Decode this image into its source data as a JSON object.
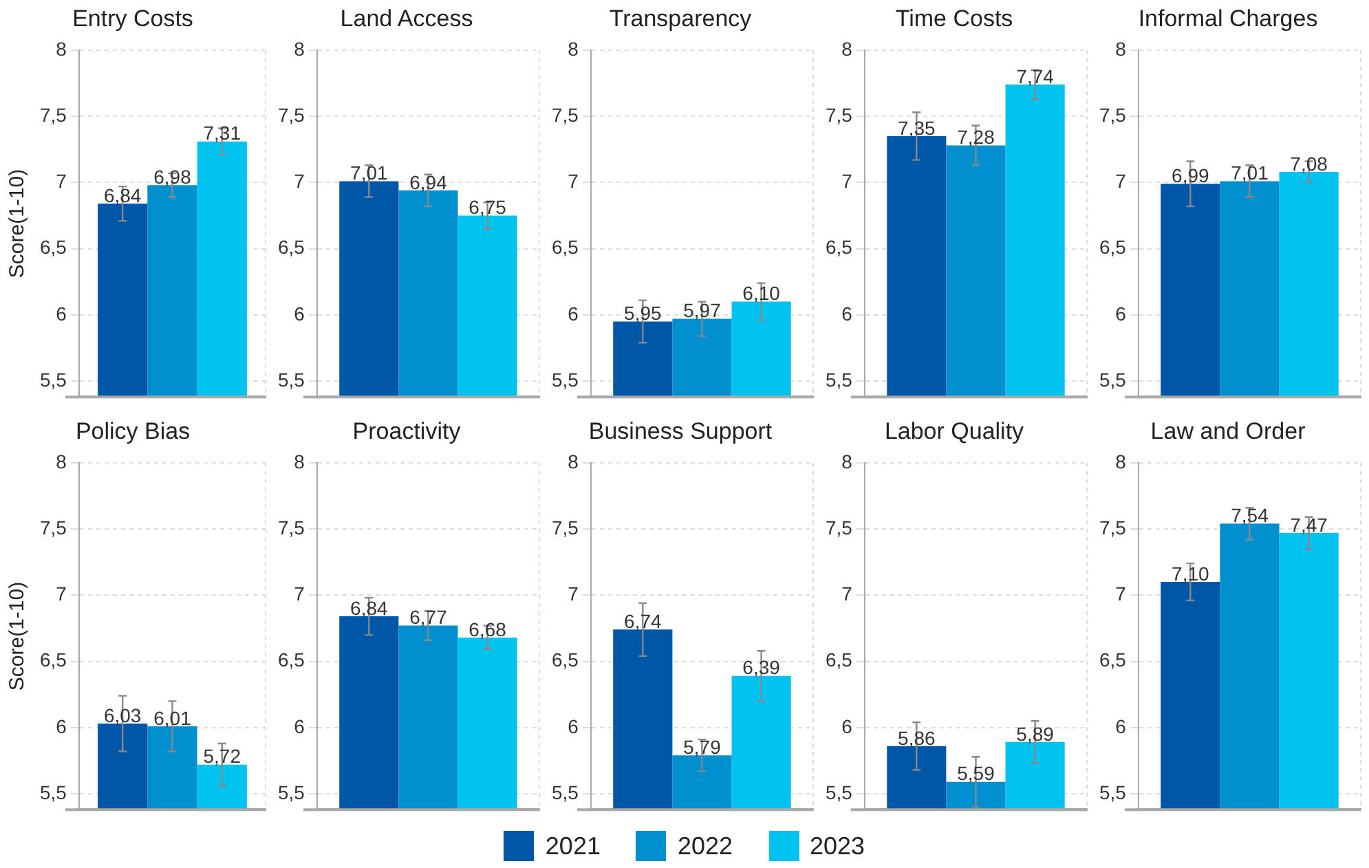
{
  "chart_data": [
    {
      "type": "bar",
      "title": "Entry Costs",
      "ylabel": "Score(1-10)",
      "categories": [
        null
      ],
      "ylim": [
        5.38,
        8
      ],
      "yticks": [
        {
          "value": 5.5,
          "label": "5,5"
        },
        6,
        {
          "value": 6.5,
          "label": "6,5"
        },
        7,
        {
          "value": 7.5,
          "label": "7,5"
        },
        8
      ],
      "grid": true,
      "series": [
        {
          "color": "#0057a8",
          "values": [
            6.84
          ],
          "value_labels": [
            "6,84"
          ],
          "errors": [
            0.13
          ]
        },
        {
          "color": "#0090d0",
          "values": [
            6.98
          ],
          "value_labels": [
            "6,98"
          ],
          "errors": [
            0.09
          ]
        },
        {
          "color": "#00c3f0",
          "values": [
            7.31
          ],
          "value_labels": [
            "7,31"
          ],
          "errors": [
            0.1
          ]
        }
      ]
    },
    {
      "type": "bar",
      "title": "Land Access",
      "categories": [
        null
      ],
      "ylim": [
        5.38,
        8
      ],
      "yticks": [
        {
          "value": 5.5,
          "label": "5,5"
        },
        6,
        {
          "value": 6.5,
          "label": "6,5"
        },
        7,
        {
          "value": 7.5,
          "label": "7,5"
        },
        8
      ],
      "grid": true,
      "series": [
        {
          "color": "#0057a8",
          "values": [
            7.01
          ],
          "value_labels": [
            "7,01"
          ],
          "errors": [
            0.12
          ]
        },
        {
          "color": "#0090d0",
          "values": [
            6.94
          ],
          "value_labels": [
            "6,94"
          ],
          "errors": [
            0.12
          ]
        },
        {
          "color": "#00c3f0",
          "values": [
            6.75
          ],
          "value_labels": [
            "6,75"
          ],
          "errors": [
            0.1
          ]
        }
      ]
    },
    {
      "type": "bar",
      "title": "Transparency",
      "categories": [
        null
      ],
      "ylim": [
        5.38,
        8
      ],
      "yticks": [
        {
          "value": 5.5,
          "label": "5,5"
        },
        6,
        {
          "value": 6.5,
          "label": "6,5"
        },
        7,
        {
          "value": 7.5,
          "label": "7,5"
        },
        8
      ],
      "grid": true,
      "series": [
        {
          "color": "#0057a8",
          "values": [
            5.95
          ],
          "value_labels": [
            "5,95"
          ],
          "errors": [
            0.16
          ]
        },
        {
          "color": "#0090d0",
          "values": [
            5.97
          ],
          "value_labels": [
            "5,97"
          ],
          "errors": [
            0.13
          ]
        },
        {
          "color": "#00c3f0",
          "values": [
            6.1
          ],
          "value_labels": [
            "6,10"
          ],
          "errors": [
            0.14
          ]
        }
      ]
    },
    {
      "type": "bar",
      "title": "Time Costs",
      "categories": [
        null
      ],
      "ylim": [
        5.38,
        8
      ],
      "yticks": [
        {
          "value": 5.5,
          "label": "5,5"
        },
        6,
        {
          "value": 6.5,
          "label": "6,5"
        },
        7,
        {
          "value": 7.5,
          "label": "7,5"
        },
        8
      ],
      "grid": true,
      "series": [
        {
          "color": "#0057a8",
          "values": [
            7.35
          ],
          "value_labels": [
            "7,35"
          ],
          "errors": [
            0.18
          ]
        },
        {
          "color": "#0090d0",
          "values": [
            7.28
          ],
          "value_labels": [
            "7,28"
          ],
          "errors": [
            0.15
          ]
        },
        {
          "color": "#00c3f0",
          "values": [
            7.74
          ],
          "value_labels": [
            "7,74"
          ],
          "errors": [
            0.11
          ]
        }
      ]
    },
    {
      "type": "bar",
      "title": "Informal Charges",
      "categories": [
        null
      ],
      "ylim": [
        5.38,
        8
      ],
      "yticks": [
        {
          "value": 5.5,
          "label": "5,5"
        },
        6,
        {
          "value": 6.5,
          "label": "6,5"
        },
        7,
        {
          "value": 7.5,
          "label": "7,5"
        },
        8
      ],
      "grid": true,
      "series": [
        {
          "color": "#0057a8",
          "values": [
            6.99
          ],
          "value_labels": [
            "6,99"
          ],
          "errors": [
            0.17
          ]
        },
        {
          "color": "#0090d0",
          "values": [
            7.01
          ],
          "value_labels": [
            "7,01"
          ],
          "errors": [
            0.12
          ]
        },
        {
          "color": "#00c3f0",
          "values": [
            7.08
          ],
          "value_labels": [
            "7,08"
          ],
          "errors": [
            0.08
          ]
        }
      ]
    },
    {
      "type": "bar",
      "title": "Policy Bias",
      "ylabel": "Score(1-10)",
      "categories": [
        null
      ],
      "ylim": [
        5.38,
        8
      ],
      "yticks": [
        {
          "value": 5.5,
          "label": "5,5"
        },
        6,
        {
          "value": 6.5,
          "label": "6,5"
        },
        7,
        {
          "value": 7.5,
          "label": "7,5"
        },
        8
      ],
      "grid": true,
      "series": [
        {
          "color": "#0057a8",
          "values": [
            6.03
          ],
          "value_labels": [
            "6,03"
          ],
          "errors": [
            0.21
          ]
        },
        {
          "color": "#0090d0",
          "values": [
            6.01
          ],
          "value_labels": [
            "6,01"
          ],
          "errors": [
            0.19
          ]
        },
        {
          "color": "#00c3f0",
          "values": [
            5.72
          ],
          "value_labels": [
            "5,72"
          ],
          "errors": [
            0.16
          ]
        }
      ]
    },
    {
      "type": "bar",
      "title": "Proactivity",
      "categories": [
        null
      ],
      "ylim": [
        5.38,
        8
      ],
      "yticks": [
        {
          "value": 5.5,
          "label": "5,5"
        },
        6,
        {
          "value": 6.5,
          "label": "6,5"
        },
        7,
        {
          "value": 7.5,
          "label": "7,5"
        },
        8
      ],
      "grid": true,
      "series": [
        {
          "color": "#0057a8",
          "values": [
            6.84
          ],
          "value_labels": [
            "6,84"
          ],
          "errors": [
            0.14
          ]
        },
        {
          "color": "#0090d0",
          "values": [
            6.77
          ],
          "value_labels": [
            "6,77"
          ],
          "errors": [
            0.11
          ]
        },
        {
          "color": "#00c3f0",
          "values": [
            6.68
          ],
          "value_labels": [
            "6,68"
          ],
          "errors": [
            0.09
          ]
        }
      ]
    },
    {
      "type": "bar",
      "title": "Business Support",
      "categories": [
        null
      ],
      "ylim": [
        5.38,
        8
      ],
      "yticks": [
        {
          "value": 5.5,
          "label": "5,5"
        },
        6,
        {
          "value": 6.5,
          "label": "6,5"
        },
        7,
        {
          "value": 7.5,
          "label": "7,5"
        },
        8
      ],
      "grid": true,
      "legend": "bottom",
      "series": [
        {
          "name": "2021",
          "color": "#0057a8",
          "values": [
            6.74
          ],
          "value_labels": [
            "6,74"
          ],
          "errors": [
            0.2
          ]
        },
        {
          "name": "2022",
          "color": "#0090d0",
          "values": [
            5.79
          ],
          "value_labels": [
            "5,79"
          ],
          "errors": [
            0.12
          ]
        },
        {
          "name": "2023",
          "color": "#00c3f0",
          "values": [
            6.39
          ],
          "value_labels": [
            "6,39"
          ],
          "errors": [
            0.19
          ]
        }
      ]
    },
    {
      "type": "bar",
      "title": "Labor Quality",
      "categories": [
        null
      ],
      "ylim": [
        5.38,
        8
      ],
      "yticks": [
        {
          "value": 5.5,
          "label": "5,5"
        },
        6,
        {
          "value": 6.5,
          "label": "6,5"
        },
        7,
        {
          "value": 7.5,
          "label": "7,5"
        },
        8
      ],
      "grid": true,
      "series": [
        {
          "color": "#0057a8",
          "values": [
            5.86
          ],
          "value_labels": [
            "5,86"
          ],
          "errors": [
            0.18
          ]
        },
        {
          "color": "#0090d0",
          "values": [
            5.59
          ],
          "value_labels": [
            "5,59"
          ],
          "errors": [
            0.19
          ]
        },
        {
          "color": "#00c3f0",
          "values": [
            5.89
          ],
          "value_labels": [
            "5,89"
          ],
          "errors": [
            0.16
          ]
        }
      ]
    },
    {
      "type": "bar",
      "title": "Law and Order",
      "categories": [
        null
      ],
      "ylim": [
        5.38,
        8
      ],
      "yticks": [
        {
          "value": 5.5,
          "label": "5,5"
        },
        6,
        {
          "value": 6.5,
          "label": "6,5"
        },
        7,
        {
          "value": 7.5,
          "label": "7,5"
        },
        8
      ],
      "grid": true,
      "series": [
        {
          "color": "#0057a8",
          "values": [
            7.1
          ],
          "value_labels": [
            "7,10"
          ],
          "errors": [
            0.14
          ]
        },
        {
          "color": "#0090d0",
          "values": [
            7.54
          ],
          "value_labels": [
            "7,54"
          ],
          "errors": [
            0.12
          ]
        },
        {
          "color": "#00c3f0",
          "values": [
            7.47
          ],
          "value_labels": [
            "7,47"
          ],
          "errors": [
            0.12
          ]
        }
      ]
    }
  ]
}
